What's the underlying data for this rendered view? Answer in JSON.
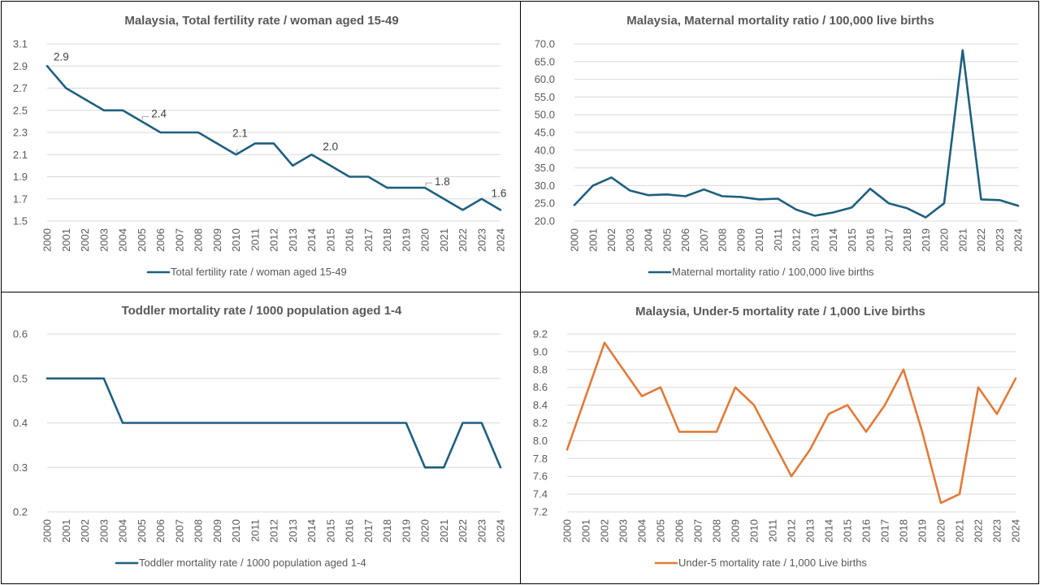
{
  "colors": {
    "blue": "#1f5f7f",
    "orange": "#e07b39"
  },
  "chart_data": [
    {
      "type": "line",
      "title": "Malaysia, Total fertility rate / woman aged 15-49",
      "x": [
        "2000",
        "2001",
        "2002",
        "2003",
        "2004",
        "2005",
        "2006",
        "2007",
        "2008",
        "2009",
        "2010",
        "2011",
        "2012",
        "2013",
        "2014",
        "2015",
        "2016",
        "2017",
        "2018",
        "2019",
        "2020",
        "2021",
        "2022",
        "2023",
        "2024"
      ],
      "series": [
        {
          "name": "Total fertility rate / woman aged 15-49",
          "color": "#1f5f7f",
          "values": [
            2.9,
            2.7,
            2.6,
            2.5,
            2.5,
            2.4,
            2.3,
            2.3,
            2.3,
            2.2,
            2.1,
            2.2,
            2.2,
            2.0,
            2.1,
            2.0,
            1.9,
            1.9,
            1.8,
            1.8,
            1.8,
            1.7,
            1.6,
            1.7,
            1.6
          ]
        }
      ],
      "yticks": [
        "1.5",
        "1.7",
        "1.9",
        "2.1",
        "2.3",
        "2.5",
        "2.7",
        "2.9",
        "3.1"
      ],
      "ylim": [
        1.5,
        3.1
      ],
      "data_labels": [
        {
          "index": 0,
          "text": "2.9"
        },
        {
          "index": 5,
          "text": "2.4"
        },
        {
          "index": 10,
          "text": "2.1"
        },
        {
          "index": 15,
          "text": "2.0"
        },
        {
          "index": 20,
          "text": "1.8"
        },
        {
          "index": 24,
          "text": "1.6"
        }
      ],
      "legend": "bottom"
    },
    {
      "type": "line",
      "title": "Malaysia, Maternal mortality ratio / 100,000 live births",
      "x": [
        "2000",
        "2001",
        "2002",
        "2003",
        "2004",
        "2005",
        "2006",
        "2007",
        "2008",
        "2009",
        "2010",
        "2011",
        "2012",
        "2013",
        "2014",
        "2015",
        "2016",
        "2017",
        "2018",
        "2019",
        "2020",
        "2021",
        "2022",
        "2023",
        "2024"
      ],
      "series": [
        {
          "name": "Maternal mortality ratio / 100,000 live births",
          "color": "#1f5f7f",
          "values": [
            24.5,
            30.0,
            32.3,
            28.6,
            27.3,
            27.5,
            27.0,
            28.9,
            27.0,
            26.8,
            26.1,
            26.3,
            23.2,
            21.5,
            22.4,
            23.8,
            29.1,
            25.0,
            23.6,
            21.0,
            25.0,
            68.2,
            26.1,
            25.9,
            24.3
          ]
        }
      ],
      "yticks": [
        "20.0",
        "25.0",
        "30.0",
        "35.0",
        "40.0",
        "45.0",
        "50.0",
        "55.0",
        "60.0",
        "65.0",
        "70.0"
      ],
      "ylim": [
        20,
        70
      ],
      "data_labels": [],
      "legend": "bottom"
    },
    {
      "type": "line",
      "title": "Toddler mortality rate / 1000 population aged 1-4",
      "x": [
        "2000",
        "2001",
        "2002",
        "2003",
        "2004",
        "2005",
        "2006",
        "2007",
        "2008",
        "2009",
        "2010",
        "2011",
        "2012",
        "2013",
        "2014",
        "2015",
        "2016",
        "2017",
        "2018",
        "2019",
        "2020",
        "2021",
        "2022",
        "2023",
        "2024"
      ],
      "series": [
        {
          "name": "Toddler mortality rate / 1000 population aged 1-4",
          "color": "#1f5f7f",
          "values": [
            0.5,
            0.5,
            0.5,
            0.5,
            0.4,
            0.4,
            0.4,
            0.4,
            0.4,
            0.4,
            0.4,
            0.4,
            0.4,
            0.4,
            0.4,
            0.4,
            0.4,
            0.4,
            0.4,
            0.4,
            0.3,
            0.3,
            0.4,
            0.4,
            0.3
          ]
        }
      ],
      "yticks": [
        "0.2",
        "0.3",
        "0.4",
        "0.5",
        "0.6"
      ],
      "ylim": [
        0.2,
        0.6
      ],
      "data_labels": [],
      "legend": "bottom"
    },
    {
      "type": "line",
      "title": "Malaysia, Under-5 mortality rate / 1,000 Live births",
      "x": [
        "2000",
        "2001",
        "2002",
        "2003",
        "2004",
        "2005",
        "2006",
        "2007",
        "2008",
        "2009",
        "2010",
        "2011",
        "2012",
        "2013",
        "2014",
        "2015",
        "2016",
        "2017",
        "2018",
        "2019",
        "2020",
        "2021",
        "2022",
        "2023",
        "2024"
      ],
      "series": [
        {
          "name": "Under-5 mortality rate / 1,000 Live births",
          "color": "#e07b39",
          "values": [
            7.9,
            8.5,
            9.1,
            8.8,
            8.5,
            8.6,
            8.1,
            8.1,
            8.1,
            8.6,
            8.4,
            8.0,
            7.6,
            7.9,
            8.3,
            8.4,
            8.1,
            8.4,
            8.8,
            8.1,
            7.3,
            7.4,
            8.6,
            8.3,
            8.7
          ]
        }
      ],
      "yticks": [
        "7.2",
        "7.4",
        "7.6",
        "7.8",
        "8.0",
        "8.2",
        "8.4",
        "8.6",
        "8.8",
        "9.0",
        "9.2"
      ],
      "ylim": [
        7.2,
        9.2
      ],
      "data_labels": [],
      "legend": "bottom"
    }
  ]
}
